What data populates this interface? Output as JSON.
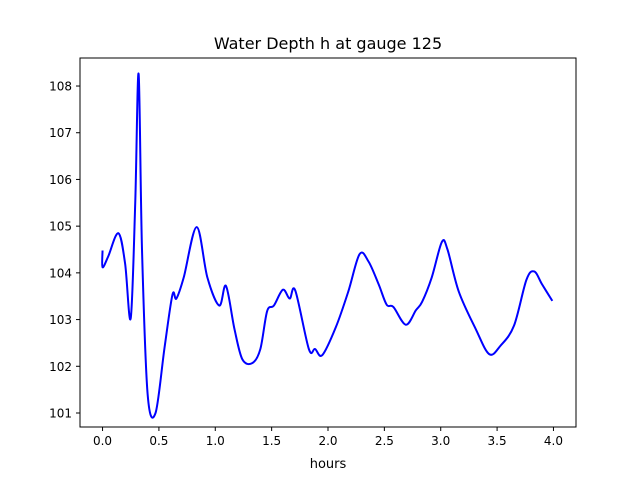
{
  "chart_data": {
    "type": "line",
    "title": "Water Depth h at gauge 125",
    "xlabel": "hours",
    "ylabel": "",
    "xlim": [
      -0.2,
      4.2
    ],
    "ylim": [
      100.7,
      108.6
    ],
    "xticks": [
      0.0,
      0.5,
      1.0,
      1.5,
      2.0,
      2.5,
      3.0,
      3.5,
      4.0
    ],
    "xtick_labels": [
      "0.0",
      "0.5",
      "1.0",
      "1.5",
      "2.0",
      "2.5",
      "3.0",
      "3.5",
      "4.0"
    ],
    "yticks": [
      101,
      102,
      103,
      104,
      105,
      106,
      107,
      108
    ],
    "ytick_labels": [
      "101",
      "102",
      "103",
      "104",
      "105",
      "106",
      "107",
      "108"
    ],
    "grid": false,
    "series": [
      {
        "name": "h",
        "color": "#0000ff",
        "x": [
          0.0,
          0.0,
          0.05,
          0.14,
          0.2,
          0.25,
          0.29,
          0.32,
          0.35,
          0.4,
          0.47,
          0.55,
          0.62,
          0.655,
          0.72,
          0.835,
          0.93,
          1.035,
          1.095,
          1.17,
          1.24,
          1.33,
          1.4,
          1.46,
          1.52,
          1.6,
          1.66,
          1.71,
          1.83,
          1.885,
          1.95,
          2.07,
          2.18,
          2.28,
          2.36,
          2.45,
          2.52,
          2.58,
          2.69,
          2.78,
          2.835,
          2.92,
          3.01,
          3.06,
          3.16,
          3.31,
          3.43,
          3.53,
          3.65,
          3.76,
          3.83,
          3.9,
          3.99
        ],
        "y": [
          104.48,
          104.12,
          104.35,
          104.85,
          104.2,
          103.03,
          105.5,
          108.26,
          104.5,
          101.4,
          101.0,
          102.4,
          103.53,
          103.45,
          103.9,
          104.98,
          103.9,
          103.3,
          103.72,
          102.8,
          102.15,
          102.07,
          102.37,
          103.18,
          103.3,
          103.64,
          103.45,
          103.62,
          102.37,
          102.37,
          102.24,
          102.84,
          103.6,
          104.4,
          104.24,
          103.75,
          103.32,
          103.27,
          102.89,
          103.2,
          103.38,
          103.9,
          104.66,
          104.5,
          103.6,
          102.8,
          102.26,
          102.44,
          102.87,
          103.85,
          104.03,
          103.75,
          103.4
        ]
      }
    ]
  }
}
